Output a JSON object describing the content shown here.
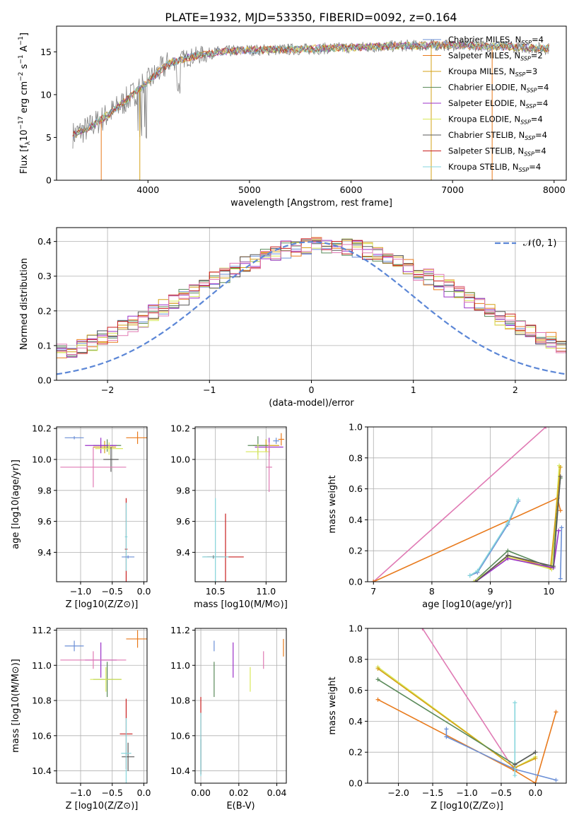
{
  "figure_title": "PLATE=1932, MJD=53350, FIBERID=0092, z=0.164",
  "colors": {
    "Chabrier MILES": "#6b8fd6",
    "Salpeter MILES": "#e87a1c",
    "Kroupa MILES": "#d4a017",
    "Chabrier ELODIE": "#5a8a5a",
    "Salpeter ELODIE": "#9b30c8",
    "Kroupa ELODIE": "#d8e85a",
    "Chabrier STELIB": "#5a5a5a",
    "Salpeter STELIB": "#c81e1e",
    "Kroupa STELIB": "#86d6dc",
    "data": "#808080",
    "normal": "#5b86d6",
    "pink": "#e07ab4"
  },
  "chart_data": [
    {
      "type": "line",
      "id": "spectrum",
      "xlabel": "wavelength [Angstrom, rest frame]",
      "ylabel": "Flux [f_λ 10^-17 erg cm^-2 s^-1 A^-1]",
      "xlim": [
        3100,
        8120
      ],
      "ylim": [
        0,
        18
      ],
      "xticks": [
        4000,
        5000,
        6000,
        7000,
        8000
      ],
      "yticks": [
        0,
        5,
        10,
        15
      ],
      "grid": false,
      "legend_position": "right",
      "legend": [
        {
          "name": "Chabrier MILES",
          "nssp": "4"
        },
        {
          "name": "Salpeter MILES",
          "nssp": "2"
        },
        {
          "name": "Kroupa MILES",
          "nssp": "3"
        },
        {
          "name": "Chabrier ELODIE",
          "nssp": "4"
        },
        {
          "name": "Salpeter ELODIE",
          "nssp": "4"
        },
        {
          "name": "Kroupa ELODIE",
          "nssp": "4"
        },
        {
          "name": "Chabrier STELIB",
          "nssp": "4"
        },
        {
          "name": "Salpeter STELIB",
          "nssp": "4"
        },
        {
          "name": "Kroupa STELIB",
          "nssp": "4"
        }
      ],
      "continuum": [
        [
          3260,
          5.3
        ],
        [
          3400,
          6.0
        ],
        [
          3500,
          6.8
        ],
        [
          3600,
          7.6
        ],
        [
          3700,
          8.5
        ],
        [
          3800,
          9.5
        ],
        [
          3900,
          10.5
        ],
        [
          4000,
          11.5
        ],
        [
          4100,
          12.6
        ],
        [
          4200,
          13.6
        ],
        [
          4350,
          14.2
        ],
        [
          4500,
          14.6
        ],
        [
          4700,
          15.0
        ],
        [
          5000,
          15.2
        ],
        [
          5500,
          15.3
        ],
        [
          6000,
          15.5
        ],
        [
          6500,
          15.7
        ],
        [
          7000,
          15.8
        ],
        [
          7500,
          15.6
        ],
        [
          7900,
          15.4
        ]
      ],
      "model_drops": [
        [
          3540,
          0
        ],
        [
          3920,
          0
        ],
        [
          6790,
          0
        ],
        [
          7390,
          0
        ]
      ]
    },
    {
      "type": "line",
      "id": "residuals",
      "xlabel": "(data-model)/error",
      "ylabel": "Normed distribution",
      "xlim": [
        -2.5,
        2.5
      ],
      "ylim": [
        0,
        0.44
      ],
      "xticks": [
        -2,
        -1,
        0,
        1,
        2
      ],
      "yticks": [
        0.0,
        0.1,
        0.2,
        0.3,
        0.4
      ],
      "grid": true,
      "legend_position": "top-right",
      "series": [
        {
          "name": "𝒩(0, 1)",
          "style": "dashed",
          "values": "gaussian(0,1)"
        }
      ],
      "histogram_bin_width": 0.1,
      "histogram_count": 9
    },
    {
      "type": "scatter",
      "id": "age_vs_Z",
      "xlabel": "Z [log10(Z/Z⊙)]",
      "ylabel": "age [log10(age/yr)]",
      "xlim": [
        -1.38,
        0.05
      ],
      "ylim": [
        9.21,
        10.21
      ],
      "xticks": [
        -1.0,
        -0.5,
        0.0
      ],
      "yticks": [
        9.4,
        9.6,
        9.8,
        10.0,
        10.2
      ],
      "grid": true,
      "points": [
        {
          "s": "Chabrier MILES",
          "x": -1.1,
          "xerr": 0.15,
          "y": 10.14,
          "yerr": 0.01
        },
        {
          "s": "Salpeter MILES",
          "x": -0.1,
          "xerr": 0.18,
          "y": 10.14,
          "yerr": 0.04
        },
        {
          "s": "Kroupa MILES",
          "x": -0.62,
          "xerr": 0.18,
          "y": 10.08,
          "yerr": 0.04
        },
        {
          "s": "Chabrier ELODIE",
          "x": -0.58,
          "xerr": 0.22,
          "y": 10.09,
          "yerr": 0.04
        },
        {
          "s": "Salpeter ELODIE",
          "x": -0.68,
          "xerr": 0.25,
          "y": 10.09,
          "yerr": 0.05
        },
        {
          "s": "Kroupa ELODIE",
          "x": -0.55,
          "xerr": 0.22,
          "y": 10.07,
          "yerr": 0.04
        },
        {
          "s": "Chabrier STELIB",
          "x": -0.52,
          "xerr": 0.12,
          "y": 10.0,
          "yerr": 0.08
        },
        {
          "s": "Salpeter STELIB",
          "x": -0.28,
          "xerr": 0.02,
          "y": 9.42,
          "yerr": 0.33
        },
        {
          "s": "Kroupa STELIB",
          "x": -0.28,
          "xerr": 0.02,
          "y": 9.5,
          "yerr": 0.22
        },
        {
          "s": "Chabrier MILES",
          "x": -0.25,
          "xerr": 0.1,
          "y": 9.37,
          "yerr": 0.01
        },
        {
          "s": "pink",
          "x": -0.8,
          "xerr": 0.52,
          "y": 9.95,
          "yerr": 0.13
        }
      ]
    },
    {
      "type": "scatter",
      "id": "age_vs_mass",
      "xlabel": "mass [log10(M/M⊙)]",
      "ylabel": "",
      "xlim": [
        10.3,
        11.2
      ],
      "ylim": [
        9.21,
        10.21
      ],
      "xticks": [
        10.5,
        11.0
      ],
      "yticks": [
        9.4,
        9.6,
        9.8,
        10.0,
        10.2
      ],
      "grid": true,
      "points": [
        {
          "s": "Chabrier MILES",
          "x": 11.1,
          "xerr": 0.03,
          "y": 10.12,
          "yerr": 0.02
        },
        {
          "s": "Salpeter MILES",
          "x": 11.15,
          "xerr": 0.03,
          "y": 10.13,
          "yerr": 0.04
        },
        {
          "s": "Kroupa MILES",
          "x": 11.0,
          "xerr": 0.13,
          "y": 10.09,
          "yerr": 0.04
        },
        {
          "s": "Chabrier ELODIE",
          "x": 10.92,
          "xerr": 0.1,
          "y": 10.09,
          "yerr": 0.06
        },
        {
          "s": "Salpeter ELODIE",
          "x": 11.03,
          "xerr": 0.14,
          "y": 10.08,
          "yerr": 0.06
        },
        {
          "s": "Kroupa ELODIE",
          "x": 10.92,
          "xerr": 0.12,
          "y": 10.05,
          "yerr": 0.05
        },
        {
          "s": "Chabrier STELIB",
          "x": 10.48,
          "xerr": 0.1,
          "y": 9.37,
          "yerr": 0.01
        },
        {
          "s": "Salpeter STELIB",
          "x": 10.6,
          "xerr": 0.18,
          "y": 9.37,
          "yerr": 0.28
        },
        {
          "s": "Kroupa STELIB",
          "x": 10.5,
          "xerr": 0.13,
          "y": 9.37,
          "yerr": 0.38
        },
        {
          "s": "pink",
          "x": 11.03,
          "xerr": 0.03,
          "y": 9.95,
          "yerr": 0.16
        }
      ]
    },
    {
      "type": "line",
      "id": "weight_vs_age",
      "xlabel": "age [log10(age/yr)]",
      "ylabel": "mass weight",
      "xlim": [
        6.9,
        10.3
      ],
      "ylim": [
        0,
        1.0
      ],
      "xticks": [
        7,
        8,
        9,
        10
      ],
      "yticks": [
        0.0,
        0.2,
        0.4,
        0.6,
        0.8,
        1.0
      ],
      "grid": true,
      "series": [
        {
          "s": "pink",
          "x": [
            7.0,
            9.95
          ],
          "y": [
            0.0,
            1.0
          ]
        },
        {
          "s": "Salpeter MILES",
          "x": [
            7.0,
            10.15,
            10.2
          ],
          "y": [
            0.0,
            0.54,
            0.46
          ]
        },
        {
          "s": "Chabrier MILES",
          "x": [
            8.65,
            8.78,
            9.3,
            9.48
          ],
          "y": [
            0.04,
            0.06,
            0.37,
            0.52
          ]
        },
        {
          "s": "Kroupa STELIB",
          "x": [
            8.65,
            8.78,
            9.3,
            9.48
          ],
          "y": [
            0.04,
            0.07,
            0.38,
            0.53
          ]
        },
        {
          "s": "Chabrier ELODIE",
          "x": [
            8.72,
            9.3,
            10.05,
            10.2
          ],
          "y": [
            0.0,
            0.2,
            0.09,
            0.67
          ]
        },
        {
          "s": "Kroupa ELODIE",
          "x": [
            8.72,
            9.3,
            10.05,
            10.18
          ],
          "y": [
            0.0,
            0.16,
            0.08,
            0.75
          ]
        },
        {
          "s": "Kroupa MILES",
          "x": [
            8.75,
            9.3,
            10.03,
            10.2
          ],
          "y": [
            0.0,
            0.17,
            0.09,
            0.74
          ]
        },
        {
          "s": "Salpeter ELODIE",
          "x": [
            8.75,
            9.3,
            10.08,
            10.17
          ],
          "y": [
            0.0,
            0.15,
            0.09,
            0.33
          ]
        },
        {
          "s": "Chabrier STELIB",
          "x": [
            8.75,
            9.3,
            10.08,
            10.2
          ],
          "y": [
            0.0,
            0.17,
            0.1,
            0.68
          ]
        },
        {
          "s": "Chabrier MILES",
          "x": [
            10.2,
            10.22
          ],
          "y": [
            0.02,
            0.35
          ]
        }
      ]
    },
    {
      "type": "scatter",
      "id": "mass_vs_Z",
      "xlabel": "Z [log10(Z/Z⊙)]",
      "ylabel": "mass [log10(M/M⊙)]",
      "xlim": [
        -1.38,
        0.05
      ],
      "ylim": [
        10.33,
        11.21
      ],
      "xticks": [
        -1.0,
        -0.5,
        0.0
      ],
      "yticks": [
        10.4,
        10.6,
        10.8,
        11.0,
        11.2
      ],
      "grid": true,
      "points": [
        {
          "s": "Chabrier MILES",
          "x": -1.1,
          "xerr": 0.15,
          "y": 11.11,
          "yerr": 0.03
        },
        {
          "s": "Salpeter MILES",
          "x": -0.1,
          "xerr": 0.18,
          "y": 11.15,
          "yerr": 0.05
        },
        {
          "s": "Salpeter ELODIE",
          "x": -0.68,
          "xerr": 0.25,
          "y": 11.03,
          "yerr": 0.1
        },
        {
          "s": "Chabrier ELODIE",
          "x": -0.58,
          "xerr": 0.22,
          "y": 10.92,
          "yerr": 0.1
        },
        {
          "s": "Kroupa ELODIE",
          "x": -0.6,
          "xerr": 0.25,
          "y": 10.92,
          "yerr": 0.07
        },
        {
          "s": "Chabrier STELIB",
          "x": -0.25,
          "xerr": 0.1,
          "y": 10.48,
          "yerr": 0.08
        },
        {
          "s": "Salpeter STELIB",
          "x": -0.28,
          "xerr": 0.1,
          "y": 10.61,
          "yerr": 0.2
        },
        {
          "s": "Kroupa STELIB",
          "x": -0.28,
          "xerr": 0.08,
          "y": 10.5,
          "yerr": 0.2
        },
        {
          "s": "pink",
          "x": -0.8,
          "xerr": 0.52,
          "y": 11.03,
          "yerr": 0.05
        }
      ]
    },
    {
      "type": "scatter",
      "id": "mass_vs_ebv",
      "xlabel": "E(B-V)",
      "ylabel": "",
      "xlim": [
        -0.003,
        0.045
      ],
      "ylim": [
        10.33,
        11.21
      ],
      "xticks": [
        0.0,
        0.02,
        0.04
      ],
      "yticks": [
        10.4,
        10.6,
        10.8,
        11.0,
        11.2
      ],
      "grid": true,
      "points": [
        {
          "s": "Chabrier MILES",
          "x": 0.007,
          "y": 11.11,
          "yerr": 0.03
        },
        {
          "s": "Salpeter MILES",
          "x": 0.0435,
          "y": 11.1,
          "yerr": 0.05
        },
        {
          "s": "Salpeter ELODIE",
          "x": 0.017,
          "y": 11.03,
          "yerr": 0.1
        },
        {
          "s": "Chabrier ELODIE",
          "x": 0.007,
          "y": 10.92,
          "yerr": 0.1
        },
        {
          "s": "Kroupa ELODIE",
          "x": 0.026,
          "y": 10.92,
          "yerr": 0.07
        },
        {
          "s": "pink",
          "x": 0.033,
          "y": 11.03,
          "yerr": 0.05
        },
        {
          "s": "Salpeter STELIB",
          "x": 0.0,
          "y": 10.6,
          "yerr": 0.22
        },
        {
          "s": "Chabrier STELIB",
          "x": 0.0,
          "y": 10.48,
          "yerr": 0.1
        },
        {
          "s": "Kroupa STELIB",
          "x": 0.0,
          "y": 10.55,
          "yerr": 0.18
        }
      ]
    },
    {
      "type": "line",
      "id": "weight_vs_Z",
      "xlabel": "Z [log10(Z/Z⊙)]",
      "ylabel": "mass weight",
      "xlim": [
        -2.45,
        0.45
      ],
      "ylim": [
        0,
        1.0
      ],
      "xticks": [
        -2.0,
        -1.5,
        -1.0,
        -0.5,
        0.0
      ],
      "yticks": [
        0.0,
        0.2,
        0.4,
        0.6,
        0.8,
        1.0
      ],
      "grid": true,
      "series": [
        {
          "s": "pink",
          "x": [
            -1.65,
            -0.3
          ],
          "y": [
            1.0,
            0.08
          ]
        },
        {
          "s": "Kroupa ELODIE",
          "x": [
            -2.3,
            -0.3,
            0.0
          ],
          "y": [
            0.75,
            0.1,
            0.17
          ]
        },
        {
          "s": "Kroupa MILES",
          "x": [
            -2.3,
            -0.3,
            0.0
          ],
          "y": [
            0.74,
            0.1,
            0.16
          ]
        },
        {
          "s": "Chabrier ELODIE",
          "x": [
            -2.3,
            -0.3,
            0.0
          ],
          "y": [
            0.67,
            0.12,
            0.2
          ]
        },
        {
          "s": "Salpeter MILES",
          "x": [
            -2.3,
            -0.3,
            0.0,
            0.3
          ],
          "y": [
            0.54,
            0.08,
            0.0,
            0.46
          ]
        },
        {
          "s": "Chabrier MILES",
          "x": [
            -1.3,
            -0.3,
            0.3
          ],
          "y": [
            0.3,
            0.09,
            0.02
          ]
        },
        {
          "s": "Chabrier MILES",
          "x": [
            -1.3,
            -1.3
          ],
          "y": [
            0.3,
            0.35
          ]
        },
        {
          "s": "Kroupa STELIB",
          "x": [
            -0.3,
            -0.3
          ],
          "y": [
            0.05,
            0.52
          ]
        },
        {
          "s": "Chabrier STELIB",
          "x": [
            -0.3,
            0.0
          ],
          "y": [
            0.12,
            0.2
          ]
        }
      ]
    }
  ]
}
